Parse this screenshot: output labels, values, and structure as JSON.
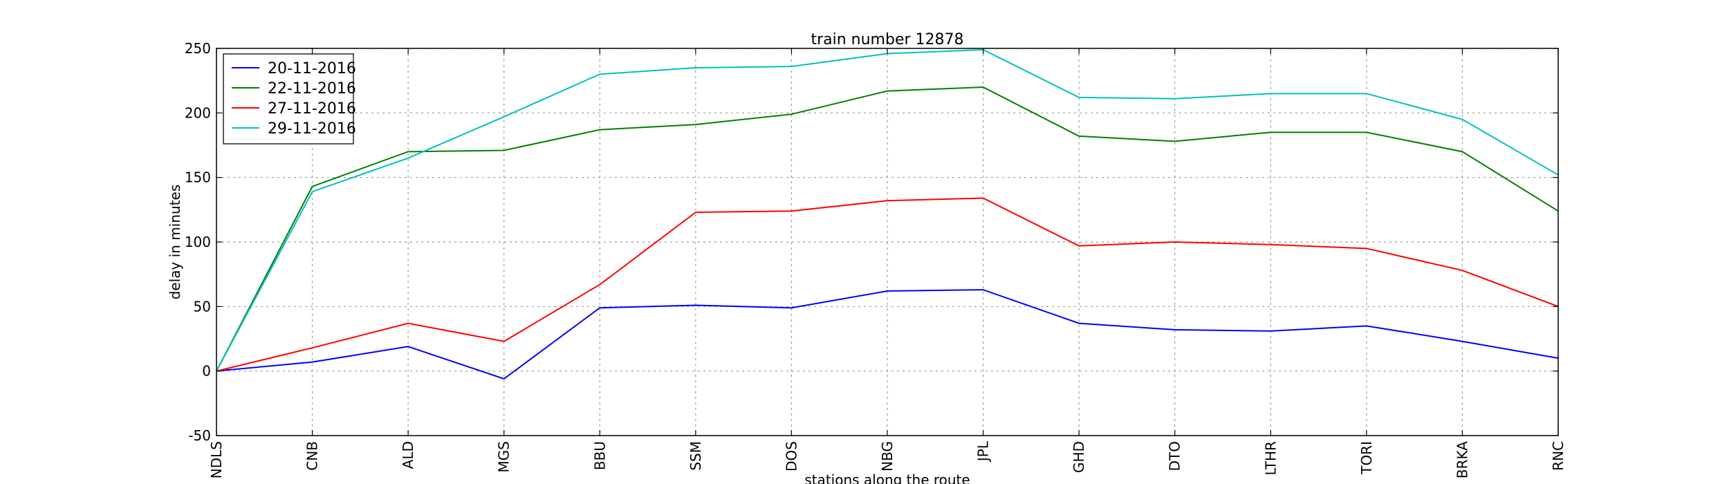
{
  "chart_data": {
    "type": "line",
    "title": "train number 12878",
    "xlabel": "stations along the route",
    "ylabel": "delay in minutes",
    "categories": [
      "NDLS",
      "CNB",
      "ALD",
      "MGS",
      "BBU",
      "SSM",
      "DOS",
      "NBG",
      "JPL",
      "GHD",
      "DTO",
      "LTHR",
      "TORI",
      "BRKA",
      "RNC"
    ],
    "ylim": [
      -50,
      250
    ],
    "yticks": [
      -50,
      0,
      50,
      100,
      150,
      200,
      250
    ],
    "grid": true,
    "legend_position": "top-left",
    "series": [
      {
        "name": "20-11-2016",
        "color": "#0000ff",
        "values": [
          0,
          7,
          19,
          -6,
          49,
          51,
          49,
          62,
          63,
          37,
          32,
          31,
          35,
          23,
          10
        ]
      },
      {
        "name": "22-11-2016",
        "color": "#008000",
        "values": [
          0,
          143,
          170,
          171,
          187,
          191,
          199,
          217,
          220,
          182,
          178,
          185,
          185,
          170,
          124
        ]
      },
      {
        "name": "27-11-2016",
        "color": "#ff0000",
        "values": [
          0,
          18,
          37,
          23,
          67,
          123,
          124,
          132,
          134,
          97,
          100,
          98,
          95,
          78,
          50
        ]
      },
      {
        "name": "29-11-2016",
        "color": "#00bfbf",
        "values": [
          0,
          139,
          165,
          197,
          230,
          235,
          236,
          246,
          249,
          212,
          211,
          215,
          215,
          195,
          152
        ]
      }
    ]
  }
}
